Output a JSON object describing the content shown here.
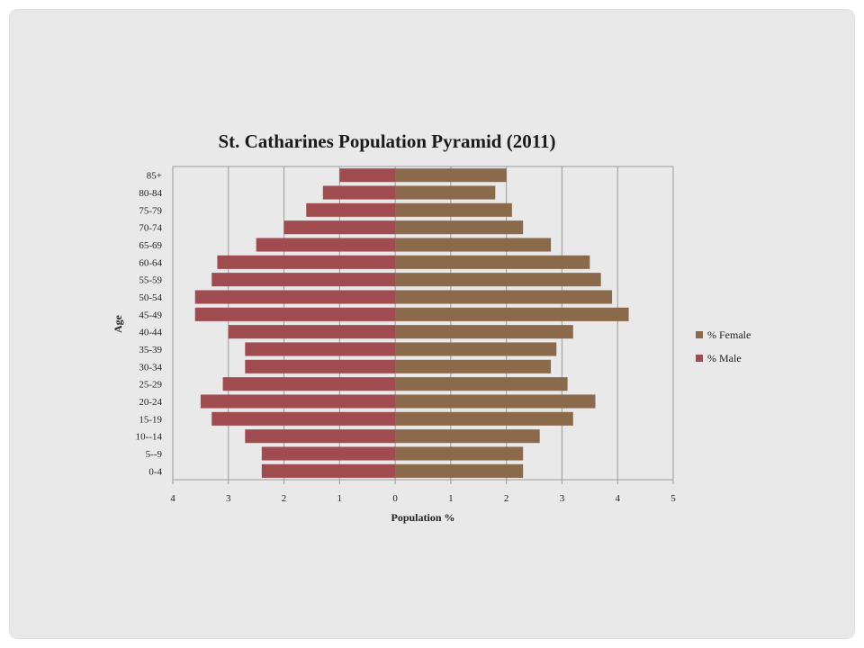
{
  "chart_data": {
    "type": "bar",
    "orientation": "horizontal",
    "title": "St. Catharines Population Pyramid (2011)",
    "xlabel": "Population  %",
    "ylabel": "Age",
    "categories": [
      "0-4",
      "5--9",
      "10--14",
      "15-19",
      "20-24",
      "25-29",
      "30-34",
      "35-39",
      "40-44",
      "45-49",
      "50-54",
      "55-59",
      "60-64",
      "65-69",
      "70-74",
      "75-79",
      "80-84",
      "85+"
    ],
    "series": [
      {
        "name": "% Female",
        "color": "#8b6a4b",
        "values": [
          2.3,
          2.3,
          2.6,
          3.2,
          3.6,
          3.1,
          2.8,
          2.9,
          3.2,
          4.2,
          3.9,
          3.7,
          3.5,
          2.8,
          2.3,
          2.1,
          1.8,
          2.0
        ]
      },
      {
        "name": "% Male",
        "color": "#a04b50",
        "values": [
          -2.4,
          -2.4,
          -2.7,
          -3.3,
          -3.5,
          -3.1,
          -2.7,
          -2.7,
          -3.0,
          -3.6,
          -3.6,
          -3.3,
          -3.2,
          -2.5,
          -2.0,
          -1.6,
          -1.3,
          -1.0
        ]
      }
    ],
    "xlim": [
      -4,
      5
    ],
    "xticks": [
      "4",
      "3",
      "2",
      "1",
      "0",
      "1",
      "2",
      "3",
      "4",
      "5"
    ],
    "grid": "vertical",
    "legend_position": "right"
  }
}
